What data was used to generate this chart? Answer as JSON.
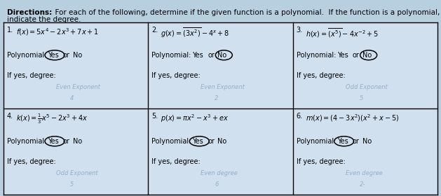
{
  "background_color": "#b8cfe0",
  "cell_background": "#d0e0ee",
  "header_text1": "Directions:",
  "header_text2": "  For each of the following, determine if the given function is a polynomial.  If the function is a polynomial,",
  "header_text3": "indicate the degree.",
  "cells": [
    {
      "num": "1.",
      "row": 0,
      "col": 0,
      "func": "f(x)=5x^4-2x^3+7x+1",
      "yes_circ": true,
      "no_circ": false,
      "hw1": "Even Exponent",
      "hw2": "4"
    },
    {
      "num": "2.",
      "row": 0,
      "col": 1,
      "func": "g(x)=\\overline{(3x^2)}-4^x+8",
      "yes_circ": false,
      "no_circ": true,
      "hw1": "Even Exponent",
      "hw2": "2"
    },
    {
      "num": "3.",
      "row": 0,
      "col": 2,
      "func": "h(x)=\\overline{(x^5)}-4x^{-2}+5",
      "yes_circ": false,
      "no_circ": true,
      "hw1": "Odd Exponent",
      "hw2": "5"
    },
    {
      "num": "4.",
      "row": 1,
      "col": 0,
      "func": "k(x)=\\frac{1}{3}x^5-2x^3+4x",
      "yes_circ": true,
      "no_circ": false,
      "hw1": "Odd Exponent",
      "hw2": "5"
    },
    {
      "num": "5.",
      "row": 1,
      "col": 1,
      "func": "p(x)=\\pi x^2-x^3+ex",
      "yes_circ": true,
      "no_circ": false,
      "hw1": "Even degree",
      "hw2": "6"
    },
    {
      "num": "6.",
      "row": 1,
      "col": 2,
      "func": "m(x)=(4-3x^2)(x^2+x-5)",
      "yes_circ": true,
      "no_circ": false,
      "hw1": "Even degree",
      "hw2": "2-"
    }
  ]
}
